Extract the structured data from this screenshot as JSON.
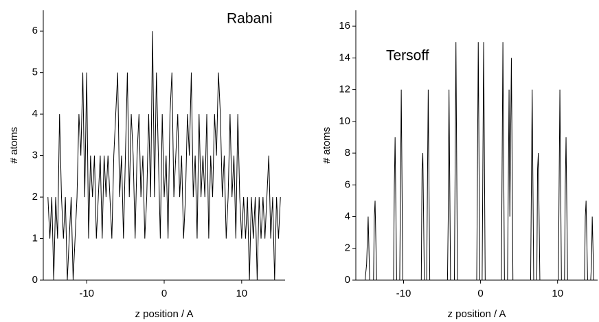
{
  "chart_data": [
    {
      "type": "line",
      "annotation": "Rabani",
      "xlabel": "z position / A",
      "ylabel": "# atoms",
      "xlim": [
        -15.6,
        15.6
      ],
      "ylim": [
        0,
        6.5
      ],
      "xticks": [
        -10,
        0,
        10
      ],
      "yticks": [
        0,
        1,
        2,
        3,
        4,
        5,
        6
      ],
      "series": [
        {
          "color": "#000000",
          "x": [
            -15,
            -14.75,
            -14.5,
            -14.25,
            -14,
            -13.75,
            -13.5,
            -13.25,
            -13,
            -12.75,
            -12.5,
            -12.25,
            -12,
            -11.75,
            -11.5,
            -11.25,
            -11,
            -10.75,
            -10.5,
            -10.25,
            -10,
            -9.75,
            -9.5,
            -9.25,
            -9,
            -8.75,
            -8.5,
            -8.25,
            -8,
            -7.75,
            -7.5,
            -7.25,
            -7,
            -6.75,
            -6.5,
            -6.25,
            -6,
            -5.75,
            -5.5,
            -5.25,
            -5,
            -4.75,
            -4.5,
            -4.25,
            -4,
            -3.75,
            -3.5,
            -3.25,
            -3,
            -2.75,
            -2.5,
            -2.25,
            -2,
            -1.75,
            -1.5,
            -1.25,
            -1,
            -0.75,
            -0.5,
            -0.25,
            0,
            0.25,
            0.5,
            0.75,
            1,
            1.25,
            1.5,
            1.75,
            2,
            2.25,
            2.5,
            2.75,
            3,
            3.25,
            3.5,
            3.75,
            4,
            4.25,
            4.5,
            4.75,
            5,
            5.25,
            5.5,
            5.75,
            6,
            6.25,
            6.5,
            6.75,
            7,
            7.25,
            7.5,
            7.75,
            8,
            8.25,
            8.5,
            8.75,
            9,
            9.25,
            9.5,
            9.75,
            10,
            10.25,
            10.5,
            10.75,
            11,
            11.25,
            11.5,
            11.75,
            12,
            12.25,
            12.5,
            12.75,
            13,
            13.25,
            13.5,
            13.75,
            14,
            14.25,
            14.5,
            14.75,
            15
          ],
          "values": [
            2,
            1,
            2,
            0,
            2,
            1,
            4,
            2,
            1,
            2,
            0,
            1,
            2,
            0,
            1,
            2,
            4,
            3,
            5,
            2,
            5,
            1,
            3,
            2,
            3,
            1,
            2,
            3,
            1,
            3,
            2,
            3,
            2,
            1,
            3,
            4,
            5,
            2,
            3,
            1,
            3,
            5,
            2,
            4,
            3,
            1,
            3,
            4,
            2,
            3,
            1,
            2,
            4,
            2,
            6,
            2,
            5,
            3,
            1,
            4,
            2,
            3,
            1,
            4,
            5,
            2,
            3,
            4,
            2,
            3,
            1,
            2,
            4,
            3,
            5,
            2,
            3,
            1,
            4,
            2,
            3,
            2,
            4,
            1,
            3,
            2,
            4,
            3,
            5,
            4,
            2,
            3,
            1,
            2,
            4,
            2,
            3,
            1,
            4,
            2,
            1,
            2,
            1,
            2,
            0,
            2,
            1,
            2,
            0,
            2,
            1,
            2,
            1,
            2,
            3,
            1,
            2,
            0,
            2,
            1,
            2
          ]
        }
      ]
    },
    {
      "type": "line",
      "annotation": "Tersoff",
      "xlabel": "z position / A",
      "ylabel": "# atoms",
      "xlim": [
        -16.2,
        15.2
      ],
      "ylim": [
        0,
        17
      ],
      "xticks": [
        -10,
        0,
        10
      ],
      "yticks": [
        0,
        2,
        4,
        6,
        8,
        10,
        12,
        14,
        16
      ],
      "series": [
        {
          "color": "#000000",
          "x": [
            -15,
            -14.8,
            -14.6,
            -14.4,
            -13.9,
            -13.8,
            -13.7,
            -13.5,
            -11.3,
            -11.2,
            -11.1,
            -10.9,
            -10.5,
            -10.3,
            -10.1,
            -7.7,
            -7.6,
            -7.5,
            -7.3,
            -7,
            -6.8,
            -6.6,
            -4.3,
            -4.2,
            -4.1,
            -3.9,
            -3.4,
            -3.2,
            -3,
            -0.5,
            -0.3,
            -0.1,
            0.2,
            0.4,
            0.6,
            2.7,
            2.9,
            3.1,
            3.5,
            3.7,
            3.8,
            4,
            4.2,
            6.5,
            6.7,
            6.9,
            7.3,
            7.4,
            7.5,
            7.7,
            10.1,
            10.3,
            10.5,
            10.9,
            11.0,
            11.1,
            11.3,
            13.5,
            13.6,
            13.7,
            13.9,
            14.3,
            14.4,
            14.5,
            14.7
          ],
          "values": [
            0,
            1,
            4,
            0,
            0,
            4,
            5,
            0,
            0,
            6,
            9,
            0,
            0,
            12,
            0,
            0,
            7,
            8,
            0,
            0,
            12,
            0,
            0,
            4,
            12,
            0,
            0,
            15,
            0,
            0,
            15,
            0,
            0,
            15,
            0,
            0,
            15,
            0,
            0,
            12,
            4,
            14,
            0,
            0,
            12,
            0,
            0,
            7,
            8,
            0,
            0,
            12,
            0,
            0,
            6,
            9,
            0,
            0,
            4,
            5,
            0,
            0,
            1,
            4,
            0
          ]
        }
      ]
    }
  ]
}
